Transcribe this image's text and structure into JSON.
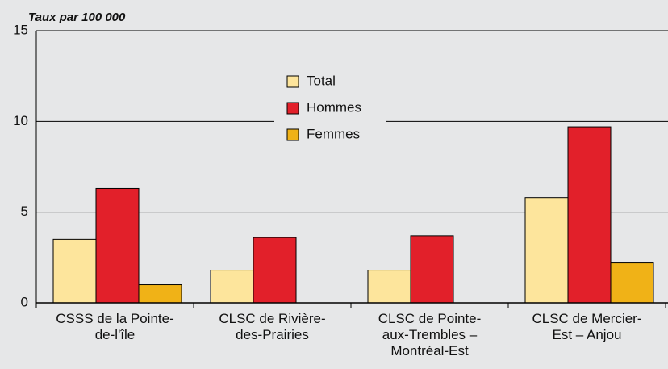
{
  "chart_data": {
    "type": "bar",
    "y_label": "Taux par 100 000",
    "categories": [
      "CSSS de la Pointe-de-l'île",
      "CLSC de Rivière-des-Prairies",
      "CLSC de Pointe-aux-Trembles – Montréal-Est",
      "CLSC de Mercier-Est – Anjou"
    ],
    "series": [
      {
        "name": "Total",
        "color": "#fde59c",
        "values": [
          3.5,
          1.8,
          1.8,
          5.8
        ]
      },
      {
        "name": "Hommes",
        "color": "#e2202a",
        "values": [
          6.3,
          3.6,
          3.7,
          9.7
        ]
      },
      {
        "name": "Femmes",
        "color": "#f0b217",
        "values": [
          1.0,
          0,
          0,
          2.2
        ]
      }
    ],
    "ylim": [
      0,
      15
    ],
    "yticks": [
      0,
      5,
      10,
      15
    ],
    "grid": true,
    "legend": "top-center"
  }
}
